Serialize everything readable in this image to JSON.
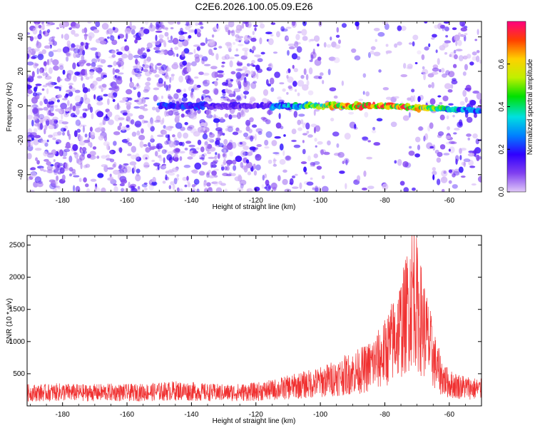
{
  "figure_title": "C2E6.2026.100.05.09.E26",
  "chart_data": [
    {
      "type": "heatmap",
      "title": "C2E6.2026.100.05.09.E26",
      "xlabel": "Height of straight line (km)",
      "ylabel": "Frequency (Hz)",
      "xlim": [
        -191,
        -50
      ],
      "ylim": [
        -50,
        49
      ],
      "xticks": [
        -180,
        -160,
        -140,
        -120,
        -100,
        -80,
        -60
      ],
      "yticks": [
        -40,
        -20,
        0,
        20,
        40
      ],
      "colorbar": {
        "label": "Normalized spectral amplitude",
        "range": [
          0.0,
          0.8
        ],
        "ticks": [
          0.0,
          0.2,
          0.4,
          0.6
        ],
        "colors": [
          "#e0c8f8",
          "#8040f0",
          "#3000ff",
          "#0080ff",
          "#00e0e0",
          "#00e000",
          "#c0f000",
          "#ffd000",
          "#ff4000",
          "#ff0080"
        ]
      },
      "features": {
        "band_center_frequency_hz": 0,
        "band_start_height_km": -150,
        "band_strong_from_km": -115,
        "peak_height_km": -85,
        "peak_amplitude": 0.75,
        "background_amplitude_range": [
          0.0,
          0.2
        ]
      },
      "grid": false
    },
    {
      "type": "line",
      "xlabel": "Height of straight line (km)",
      "ylabel": "SNR (10 * v/v)",
      "xlim": [
        -191,
        -50
      ],
      "ylim": [
        0,
        2650
      ],
      "xticks": [
        -180,
        -160,
        -140,
        -120,
        -100,
        -80,
        -60
      ],
      "yticks": [
        500,
        1000,
        1500,
        2000,
        2500
      ],
      "series": [
        {
          "color": "#f03030",
          "x": [
            -190,
            -185,
            -180,
            -175,
            -170,
            -165,
            -160,
            -155,
            -150,
            -145,
            -140,
            -135,
            -130,
            -125,
            -120,
            -115,
            -110,
            -105,
            -100,
            -95,
            -90,
            -86,
            -82,
            -80,
            -78,
            -76,
            -74,
            -72,
            -71,
            -70,
            -68,
            -66,
            -64,
            -62,
            -60,
            -56,
            -52,
            -50
          ],
          "values": [
            200,
            200,
            210,
            200,
            200,
            205,
            200,
            205,
            215,
            230,
            220,
            205,
            200,
            205,
            215,
            240,
            280,
            320,
            360,
            430,
            500,
            560,
            700,
            800,
            950,
            1100,
            1300,
            1600,
            1800,
            1500,
            1200,
            900,
            600,
            420,
            330,
            290,
            260,
            250
          ]
        }
      ],
      "grid": false
    }
  ]
}
